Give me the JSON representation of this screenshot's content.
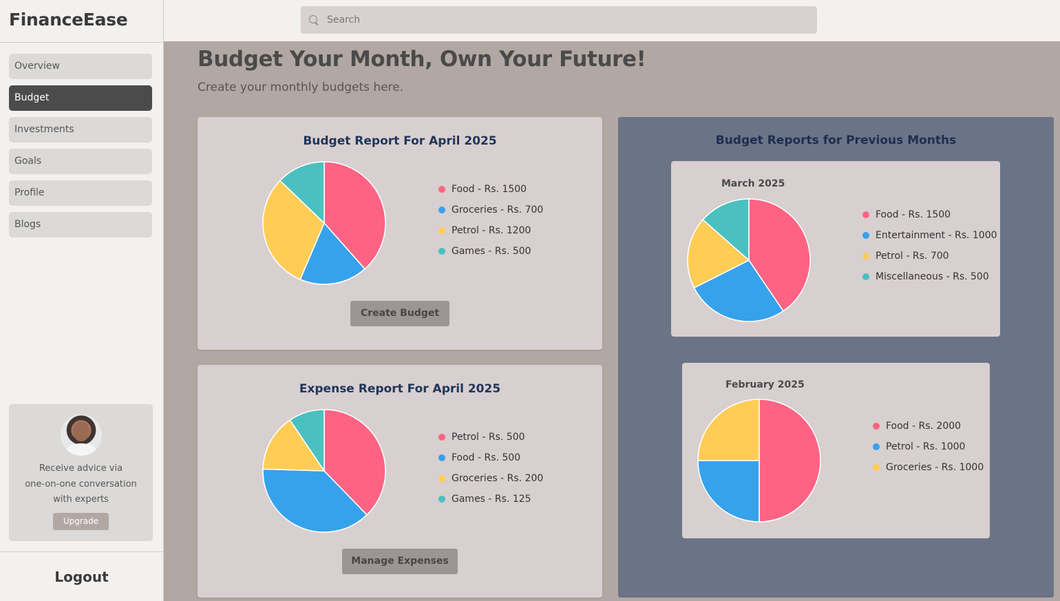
{
  "app": {
    "name": "FinanceEase"
  },
  "sidebar": {
    "items": [
      {
        "label": "Overview",
        "active": false
      },
      {
        "label": "Budget",
        "active": true
      },
      {
        "label": "Investments",
        "active": false
      },
      {
        "label": "Goals",
        "active": false
      },
      {
        "label": "Profile",
        "active": false
      },
      {
        "label": "Blogs",
        "active": false
      }
    ],
    "promo": {
      "line1": "Receive advice via",
      "line2": "one-on-one conversation",
      "line3": "with experts",
      "button": "Upgrade"
    },
    "logout": "Logout"
  },
  "header": {
    "search_placeholder": "Search"
  },
  "main": {
    "title": "Budget Your Month, Own Your Future!",
    "subtitle": "Create your monthly budgets here.",
    "budget_card": {
      "title": "Budget Report For April 2025",
      "button": "Create Budget"
    },
    "expense_card": {
      "title": "Expense Report For April 2025",
      "button": "Manage Expenses"
    },
    "previous": {
      "title": "Budget Reports for Previous Months",
      "march": {
        "title": "March 2025"
      },
      "february": {
        "title": "February 2025"
      }
    }
  },
  "colors": {
    "pink": "#ff6384",
    "blue": "#36a2eb",
    "yellow": "#ffcd56",
    "teal": "#4bc0c0"
  },
  "chart_data": [
    {
      "id": "budget_april",
      "type": "pie",
      "title": "Budget Report For April 2025",
      "slices": [
        {
          "label": "Food - Rs. 1500",
          "value": 1500,
          "color": "#ff6384"
        },
        {
          "label": "Groceries - Rs. 700",
          "value": 700,
          "color": "#36a2eb"
        },
        {
          "label": "Petrol - Rs. 1200",
          "value": 1200,
          "color": "#ffcd56"
        },
        {
          "label": "Games - Rs. 500",
          "value": 500,
          "color": "#4bc0c0"
        }
      ]
    },
    {
      "id": "expense_april",
      "type": "pie",
      "title": "Expense Report For April 2025",
      "slices": [
        {
          "label": "Petrol - Rs. 500",
          "value": 500,
          "color": "#ff6384"
        },
        {
          "label": "Food - Rs. 500",
          "value": 500,
          "color": "#36a2eb"
        },
        {
          "label": "Groceries - Rs. 200",
          "value": 200,
          "color": "#ffcd56"
        },
        {
          "label": "Games - Rs. 125",
          "value": 125,
          "color": "#4bc0c0"
        }
      ]
    },
    {
      "id": "march",
      "type": "pie",
      "title": "March 2025",
      "slices": [
        {
          "label": "Food - Rs. 1500",
          "value": 1500,
          "color": "#ff6384"
        },
        {
          "label": "Entertainment - Rs. 1000",
          "value": 1000,
          "color": "#36a2eb"
        },
        {
          "label": "Petrol - Rs. 700",
          "value": 700,
          "color": "#ffcd56"
        },
        {
          "label": "Miscellaneous - Rs. 500",
          "value": 500,
          "color": "#4bc0c0"
        }
      ]
    },
    {
      "id": "february",
      "type": "pie",
      "title": "February 2025",
      "slices": [
        {
          "label": "Food - Rs. 2000",
          "value": 2000,
          "color": "#ff6384"
        },
        {
          "label": "Petrol - Rs. 1000",
          "value": 1000,
          "color": "#36a2eb"
        },
        {
          "label": "Groceries - Rs. 1000",
          "value": 1000,
          "color": "#ffcd56"
        }
      ]
    }
  ]
}
